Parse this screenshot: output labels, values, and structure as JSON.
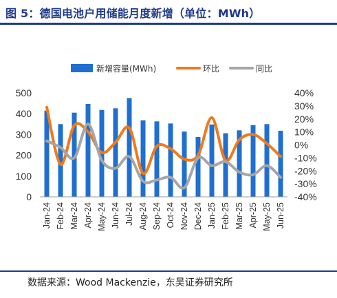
{
  "title": "图 5：德国电池户用储能月度新增（单位：MWh）",
  "source": "数据来源：Wood Mackenzie，东吴证券研究所",
  "legend": [
    "新增容量(MWh)",
    "环比",
    "同比"
  ],
  "colors": {
    "bar": "#1f6fd0",
    "mom": "#f07a1a",
    "yoy": "#a6a6a6",
    "accent": "#1f3a8a"
  },
  "chart_data": {
    "type": "bar",
    "categories": [
      "Jan-24",
      "Feb-24",
      "Mar-24",
      "Apr-24",
      "May-24",
      "Jun-24",
      "Jul-24",
      "Aug-24",
      "Sep-24",
      "Oct-24",
      "Nov-24",
      "Dec-24",
      "Jan-25",
      "Feb-25",
      "Mar-25",
      "Apr-25",
      "May-25",
      "Jun-25"
    ],
    "series": [
      {
        "name": "新增容量(MWh)",
        "type": "bar",
        "axis": "left",
        "values": [
          415,
          350,
          405,
          447,
          418,
          426,
          475,
          368,
          363,
          353,
          314,
          288,
          348,
          306,
          320,
          345,
          350,
          318
        ]
      },
      {
        "name": "环比",
        "type": "line",
        "axis": "right",
        "values": [
          29,
          -15,
          15,
          10,
          -6,
          2,
          13,
          -22,
          -1,
          -3,
          -11,
          -8,
          21,
          -12,
          4,
          8,
          1,
          -9
        ]
      },
      {
        "name": "同比",
        "type": "line",
        "axis": "right",
        "values": [
          3,
          -2,
          -10,
          16,
          -12,
          -18,
          -9,
          -28,
          -27,
          -25,
          -33,
          -10,
          -16,
          -13,
          -21,
          -23,
          -16,
          -25
        ]
      }
    ],
    "ylim_left": [
      0,
      500
    ],
    "yticks_left": [
      "0",
      "100",
      "200",
      "300",
      "400",
      "500"
    ],
    "ylim_right": [
      -40,
      40
    ],
    "yticks_right": [
      "-40%",
      "-30%",
      "-20%",
      "-10%",
      "0%",
      "10%",
      "20%",
      "30%",
      "40%"
    ],
    "legend_position": "top",
    "grid": false
  }
}
